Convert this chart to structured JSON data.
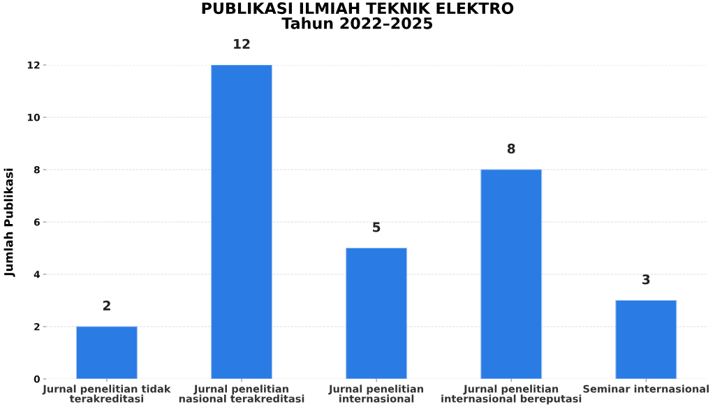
{
  "chart_data": {
    "type": "bar",
    "title": "PUBLIKASI ILMIAH TEKNIK ELEKTRO\nTahun 2022–2025",
    "ylabel": "Jumlah Publikasi",
    "categories": [
      "Jurnal penelitian tidak\nterakreditasi",
      "Jurnal penelitian\nnasional terakreditasi",
      "Jurnal penelitian\ninternasional",
      "Jurnal penelitian\ninternasional bereputasi",
      "Seminar internasional"
    ],
    "values": [
      2,
      12,
      5,
      8,
      3
    ],
    "color": "#2b7be4",
    "ylim": [
      0,
      12
    ],
    "yticks": [
      0,
      2,
      4,
      6,
      8,
      10,
      12
    ],
    "grid": "y",
    "data_labels": true
  }
}
